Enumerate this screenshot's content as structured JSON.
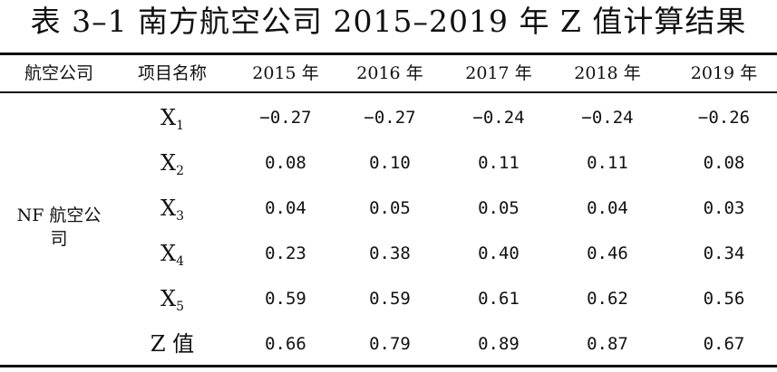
{
  "title": "表 3–1 南方航空公司 2015–2019 年 Z 值计算结果",
  "table": {
    "headers": {
      "airline": "航空公司",
      "item": "项目名称",
      "years": [
        "2015 年",
        "2016 年",
        "2017 年",
        "2018 年",
        "2019 年"
      ]
    },
    "airline_name": "NF 航空公司",
    "rows": [
      {
        "item": "X",
        "sub": "1",
        "values": [
          "−0.27",
          "−0.27",
          "−0.24",
          "−0.24",
          "−0.26"
        ]
      },
      {
        "item": "X",
        "sub": "2",
        "values": [
          "0.08",
          "0.10",
          "0.11",
          "0.11",
          "0.08"
        ]
      },
      {
        "item": "X",
        "sub": "3",
        "values": [
          "0.04",
          "0.05",
          "0.05",
          "0.04",
          "0.03"
        ]
      },
      {
        "item": "X",
        "sub": "4",
        "values": [
          "0.23",
          "0.38",
          "0.40",
          "0.46",
          "0.34"
        ]
      },
      {
        "item": "X",
        "sub": "5",
        "values": [
          "0.59",
          "0.59",
          "0.61",
          "0.62",
          "0.56"
        ]
      },
      {
        "item": "Z 值",
        "sub": "",
        "values": [
          "0.66",
          "0.79",
          "0.89",
          "0.87",
          "0.67"
        ]
      }
    ]
  }
}
